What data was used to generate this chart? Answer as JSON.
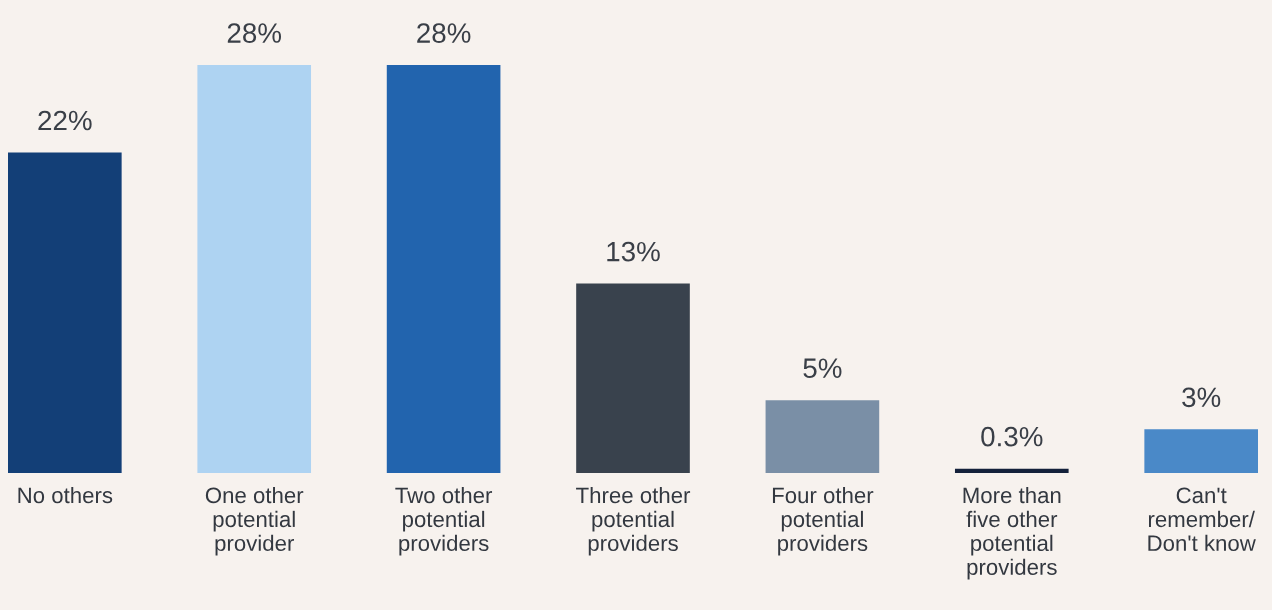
{
  "chart_data": {
    "type": "bar",
    "categories": [
      "No others",
      "One other\npotential\nprovider",
      "Two other\npotential\nproviders",
      "Three other\npotential\nproviders",
      "Four other\npotential\nproviders",
      "More than\nfive other\npotential\nproviders",
      "Can't\nremember/\nDon't know"
    ],
    "values": [
      22,
      28,
      28,
      13,
      5,
      0.3,
      3
    ],
    "colors": [
      "#133f77",
      "#aed3f2",
      "#2264ae",
      "#39424d",
      "#7a8fa6",
      "#14213b",
      "#4a89c8"
    ],
    "value_labels": [
      "22%",
      "28%",
      "28%",
      "13%",
      "5%",
      "0.3%",
      "3%"
    ],
    "grid": false,
    "legend": false
  }
}
